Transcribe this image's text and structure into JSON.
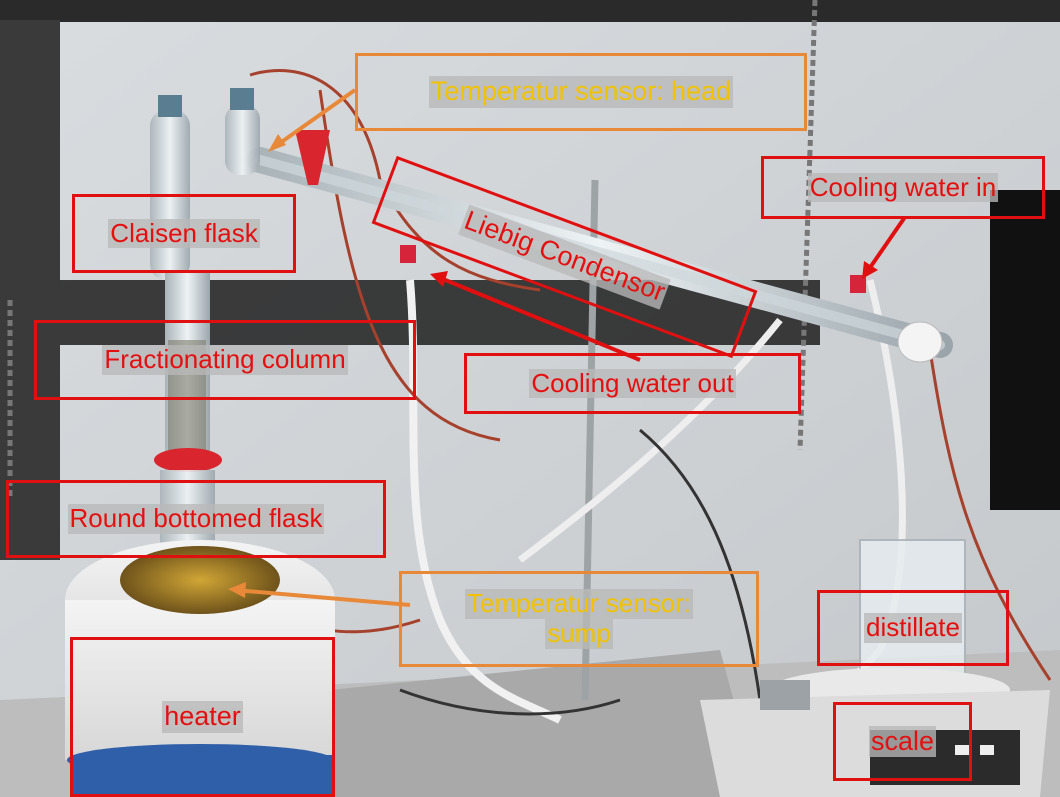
{
  "image": {
    "description_labels": {
      "temp_head": "Temperatur sensor: head",
      "claisen_flask": "Claisen flask",
      "liebig_condensor": "Liebig Condensor",
      "cooling_water_in": "Cooling water in",
      "fractionating_column": "Fractionating column",
      "cooling_water_out": "Cooling water out",
      "round_bottomed_flask": "Round bottomed flask",
      "temp_sump_line1": "Temperatur sensor:",
      "temp_sump_line2": "sump",
      "distillate": "distillate",
      "heater": "heater",
      "scale": "scale"
    },
    "colors": {
      "box_red": "#e01010",
      "box_orange": "#e8893a",
      "label_yellow": "#f2c200",
      "label_red": "#e41010"
    }
  }
}
